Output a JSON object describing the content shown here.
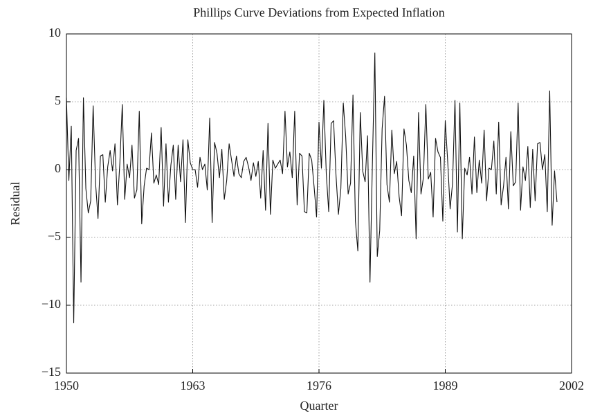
{
  "chart_data": {
    "type": "line",
    "title": "Phillips Curve Deviations from Expected Inflation",
    "xlabel": "Quarter",
    "ylabel": "Residual",
    "xlim": [
      1950,
      2002
    ],
    "xticks": [
      1950,
      1963,
      1976,
      1989,
      2002
    ],
    "ylim": [
      -15,
      10
    ],
    "yticks": [
      {
        "value": -15,
        "label": "−15"
      },
      {
        "value": -10,
        "label": "−10"
      },
      {
        "value": -5,
        "label": "−5"
      },
      0,
      5,
      10
    ],
    "grid": true,
    "x": [
      1950,
      1950.25,
      1950.5,
      1950.75,
      1951,
      1951.25,
      1951.5,
      1951.75,
      1952,
      1952.25,
      1952.5,
      1952.75,
      1953,
      1953.25,
      1953.5,
      1953.75,
      1954,
      1954.25,
      1954.5,
      1954.75,
      1955,
      1955.25,
      1955.5,
      1955.75,
      1956,
      1956.25,
      1956.5,
      1956.75,
      1957,
      1957.25,
      1957.5,
      1957.75,
      1958,
      1958.25,
      1958.5,
      1958.75,
      1959,
      1959.25,
      1959.5,
      1959.75,
      1960,
      1960.25,
      1960.5,
      1960.75,
      1961,
      1961.25,
      1961.5,
      1961.75,
      1962,
      1962.25,
      1962.5,
      1962.75,
      1963,
      1963.25,
      1963.5,
      1963.75,
      1964,
      1964.25,
      1964.5,
      1964.75,
      1965,
      1965.25,
      1965.5,
      1965.75,
      1966,
      1966.25,
      1966.5,
      1966.75,
      1967,
      1967.25,
      1967.5,
      1967.75,
      1968,
      1968.25,
      1968.5,
      1968.75,
      1969,
      1969.25,
      1969.5,
      1969.75,
      1970,
      1970.25,
      1970.5,
      1970.75,
      1971,
      1971.25,
      1971.5,
      1971.75,
      1972,
      1972.25,
      1972.5,
      1972.75,
      1973,
      1973.25,
      1973.5,
      1973.75,
      1974,
      1974.25,
      1974.5,
      1974.75,
      1975,
      1975.25,
      1975.5,
      1975.75,
      1976,
      1976.25,
      1976.5,
      1976.75,
      1977,
      1977.25,
      1977.5,
      1977.75,
      1978,
      1978.25,
      1978.5,
      1978.75,
      1979,
      1979.25,
      1979.5,
      1979.75,
      1980,
      1980.25,
      1980.5,
      1980.75,
      1981,
      1981.25,
      1981.5,
      1981.75,
      1982,
      1982.25,
      1982.5,
      1982.75,
      1983,
      1983.25,
      1983.5,
      1983.75,
      1984,
      1984.25,
      1984.5,
      1984.75,
      1985,
      1985.25,
      1985.5,
      1985.75,
      1986,
      1986.25,
      1986.5,
      1986.75,
      1987,
      1987.25,
      1987.5,
      1987.75,
      1988,
      1988.25,
      1988.5,
      1988.75,
      1989,
      1989.25,
      1989.5,
      1989.75,
      1990,
      1990.25,
      1990.5,
      1990.75,
      1991,
      1991.25,
      1991.5,
      1991.75,
      1992,
      1992.25,
      1992.5,
      1992.75,
      1993,
      1993.25,
      1993.5,
      1993.75,
      1994,
      1994.25,
      1994.5,
      1994.75,
      1995,
      1995.25,
      1995.5,
      1995.75,
      1996,
      1996.25,
      1996.5,
      1996.75,
      1997,
      1997.25,
      1997.5,
      1997.75,
      1998,
      1998.25,
      1998.5,
      1998.75,
      1999,
      1999.25,
      1999.5,
      1999.75,
      2000,
      2000.25,
      2000.5
    ],
    "series": [
      {
        "color": "#111111",
        "values": [
          5.3,
          -0.8,
          3.2,
          -11.3,
          1.4,
          2.3,
          -8.3,
          5.3,
          -1.4,
          -3.2,
          -2.3,
          4.7,
          -1.0,
          -3.6,
          1.0,
          1.1,
          -2.4,
          0.2,
          1.4,
          -0.1,
          1.9,
          -2.6,
          0.5,
          4.8,
          -2.2,
          0.4,
          -0.6,
          1.8,
          -2.1,
          -1.5,
          4.3,
          -4.0,
          -1.2,
          0.1,
          0.0,
          2.7,
          -1.0,
          -0.4,
          -1.1,
          3.1,
          -2.7,
          1.9,
          -2.4,
          0.3,
          1.8,
          -2.2,
          1.8,
          -0.9,
          2.2,
          -3.9,
          2.2,
          0.5,
          0.0,
          0.0,
          -1.3,
          0.9,
          0.0,
          0.4,
          -1.5,
          3.8,
          -3.9,
          2.0,
          1.2,
          -0.6,
          1.5,
          -2.2,
          -0.8,
          1.9,
          0.7,
          -0.5,
          1.0,
          -0.3,
          -0.6,
          0.6,
          0.9,
          0.2,
          -0.8,
          0.5,
          -0.5,
          0.6,
          -2.1,
          1.4,
          -3.0,
          3.4,
          -3.3,
          0.7,
          0.1,
          0.4,
          0.7,
          -0.3,
          4.3,
          0.2,
          1.3,
          -0.6,
          4.3,
          -2.6,
          1.2,
          1.0,
          -3.1,
          -3.2,
          1.2,
          0.7,
          -1.3,
          -3.5,
          3.5,
          0.1,
          5.1,
          -0.3,
          -3.1,
          3.4,
          3.6,
          -0.4,
          -3.3,
          -1.4,
          4.9,
          2.4,
          -1.8,
          -1.0,
          5.5,
          -3.8,
          -6.0,
          4.2,
          -0.1,
          -0.9,
          2.5,
          -8.3,
          0.5,
          8.6,
          -6.4,
          -4.5,
          3.0,
          5.4,
          -1.1,
          -2.4,
          2.9,
          -0.3,
          0.6,
          -2.0,
          -3.4,
          3.0,
          1.8,
          -0.8,
          -1.7,
          1.0,
          -5.1,
          4.2,
          -1.8,
          -0.6,
          4.8,
          -0.7,
          -0.2,
          -3.5,
          2.3,
          1.3,
          0.9,
          -3.8,
          3.6,
          0.6,
          -2.9,
          -1.0,
          5.1,
          -4.6,
          4.9,
          -5.1,
          0.1,
          -0.4,
          0.9,
          -1.8,
          2.4,
          -1.7,
          0.7,
          -1.0,
          2.9,
          -2.3,
          0.1,
          0.0,
          2.1,
          -1.8,
          3.5,
          -2.6,
          -1.2,
          0.9,
          -2.9,
          2.8,
          -1.2,
          -0.9,
          4.9,
          -3.0,
          0.2,
          -0.8,
          1.7,
          -2.8,
          1.5,
          -2.3,
          1.9,
          2.0,
          0.0,
          1.1,
          -3.1,
          5.8,
          -4.1,
          -0.1,
          -2.4
        ]
      }
    ]
  }
}
